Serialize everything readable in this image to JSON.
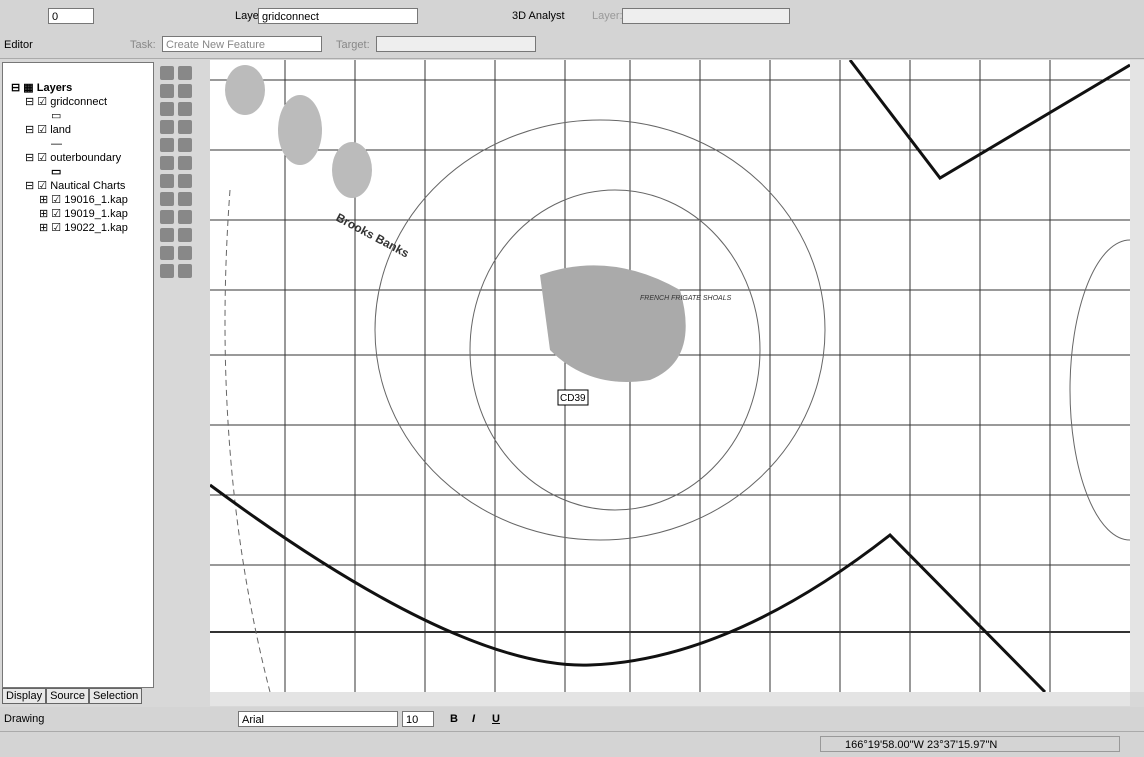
{
  "toolbar": {
    "scale": "0",
    "layer_label": "Layer:",
    "layer_value": "gridconnect",
    "analyst": "3D Analyst",
    "layer2_label": "Layer:"
  },
  "editor": {
    "editor": "Editor",
    "task_label": "Task:",
    "task_value": "Create New Feature",
    "target_label": "Target:"
  },
  "toc": {
    "root": "Layers",
    "layers": [
      "gridconnect",
      "land",
      "outerboundary",
      "Nautical Charts"
    ],
    "charts": [
      "19016_1.kap",
      "19019_1.kap",
      "19022_1.kap"
    ]
  },
  "tabs": [
    "Display",
    "Source",
    "Selection"
  ],
  "map": {
    "bank": "Brooks Banks",
    "point": "CD39",
    "shoals": "FRENCH FRIGATE SHOALS"
  },
  "drawing": {
    "menu": "Drawing",
    "font": "Arial",
    "size": "10",
    "bold": "B",
    "italic": "I",
    "underline": "U"
  },
  "status": {
    "coords": "166°19'58.00\"W  23°37'15.97\"N"
  }
}
